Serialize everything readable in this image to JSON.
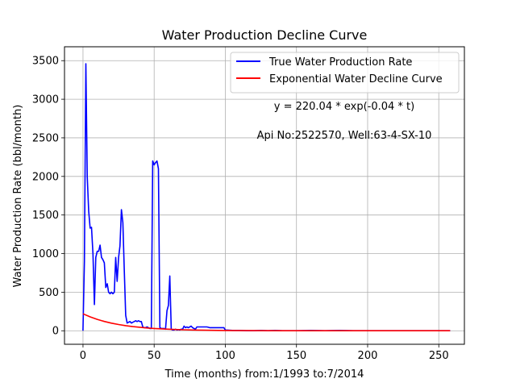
{
  "chart_data": {
    "type": "line",
    "title": "Water Production Decline Curve",
    "xlabel": "Time (months) from:1/1993 to:7/2014",
    "ylabel": "Water Production Rate (bbl/month)",
    "xlim": [
      -13,
      268
    ],
    "ylim": [
      -175,
      3680
    ],
    "grid": true,
    "legend_position": "top-right",
    "x_ticks": [
      0,
      50,
      100,
      150,
      200,
      250
    ],
    "y_ticks": [
      0,
      500,
      1000,
      1500,
      2000,
      2500,
      3000,
      3500
    ],
    "x_tick_labels": [
      "0",
      "50",
      "100",
      "150",
      "200",
      "250"
    ],
    "y_tick_labels": [
      "0",
      "500",
      "1000",
      "1500",
      "2000",
      "2500",
      "3000",
      "3500"
    ],
    "annotations": [
      "y = 220.04 * exp(-0.04 * t)",
      "Api No:2522570, Well:63-4-SX-10"
    ],
    "series": [
      {
        "name": "True Water Production Rate",
        "color": "#0000ff",
        "x": [
          0,
          1,
          2,
          3,
          4,
          5,
          6,
          7,
          8,
          9,
          10,
          11,
          12,
          13,
          14,
          15,
          16,
          17,
          18,
          19,
          20,
          21,
          22,
          23,
          24,
          25,
          26,
          27,
          28,
          29,
          30,
          31,
          32,
          33,
          34,
          35,
          36,
          37,
          38,
          39,
          40,
          41,
          42,
          43,
          44,
          45,
          46,
          47,
          48,
          49,
          50,
          51,
          52,
          53,
          54,
          55,
          56,
          57,
          58,
          59,
          60,
          61,
          62,
          63,
          64,
          65,
          66,
          67,
          68,
          69,
          70,
          71,
          72,
          73,
          74,
          75,
          76,
          77,
          78,
          79,
          80,
          81,
          82,
          83,
          84,
          85,
          86,
          87,
          88,
          89,
          90,
          91,
          92,
          93,
          94,
          95,
          96,
          97,
          98,
          99,
          100,
          105,
          110,
          115,
          120,
          125,
          130,
          135,
          140,
          145,
          150,
          160,
          170,
          180,
          190,
          200,
          210,
          220,
          230,
          240,
          250,
          258
        ],
        "y": [
          0,
          900,
          3460,
          2000,
          1550,
          1330,
          1340,
          1000,
          340,
          950,
          1030,
          1030,
          1110,
          950,
          920,
          880,
          560,
          610,
          500,
          480,
          500,
          480,
          500,
          950,
          640,
          950,
          1100,
          1570,
          1400,
          800,
          200,
          100,
          110,
          120,
          100,
          110,
          120,
          130,
          120,
          130,
          120,
          120,
          50,
          40,
          40,
          50,
          40,
          30,
          30,
          2200,
          2150,
          2180,
          2200,
          2100,
          40,
          30,
          30,
          30,
          20,
          260,
          330,
          710,
          20,
          10,
          10,
          20,
          10,
          15,
          10,
          20,
          20,
          60,
          40,
          50,
          40,
          50,
          60,
          40,
          30,
          20,
          50,
          50,
          50,
          50,
          50,
          50,
          50,
          50,
          45,
          40,
          40,
          40,
          40,
          40,
          40,
          40,
          40,
          40,
          40,
          40,
          10,
          5,
          5,
          0,
          0,
          5,
          0,
          5,
          0,
          0,
          0,
          5,
          0,
          5,
          0,
          0,
          0,
          0,
          0,
          0,
          0,
          0
        ]
      },
      {
        "name": "Exponential Water Decline Curve",
        "color": "#ff0000",
        "function": "y = 220.04 * exp(-0.04 * t)",
        "x": [
          0,
          5,
          10,
          15,
          20,
          25,
          30,
          35,
          40,
          45,
          50,
          60,
          70,
          80,
          90,
          100,
          120,
          140,
          160,
          180,
          200,
          220,
          240,
          258
        ],
        "y": [
          220,
          180,
          148,
          121,
          99,
          81,
          66,
          54,
          45,
          36,
          30,
          20,
          13,
          9,
          6,
          4,
          2,
          1,
          0,
          0,
          0,
          0,
          0,
          0
        ]
      }
    ]
  }
}
